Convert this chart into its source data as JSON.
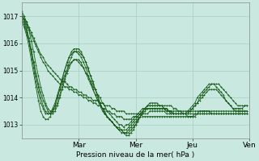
{
  "bg_color": "#c8e8e0",
  "grid_color": "#a0c8b8",
  "line_color": "#1a5c1a",
  "marker_color": "#1a5c1a",
  "title": "Pression niveau de la mer( hPa )",
  "ylabel_ticks": [
    1013,
    1014,
    1015,
    1016,
    1017
  ],
  "ylim": [
    1012.5,
    1017.5
  ],
  "day_labels": [
    "Mar",
    "Mer",
    "Jeu",
    "Ven"
  ],
  "day_positions": [
    24,
    48,
    72,
    96
  ],
  "xlim": [
    0,
    96
  ],
  "series": [
    [
      1017.0,
      1016.9,
      1016.8,
      1016.6,
      1016.4,
      1016.2,
      1016.0,
      1015.8,
      1015.6,
      1015.5,
      1015.3,
      1015.2,
      1015.1,
      1015.0,
      1014.9,
      1014.8,
      1014.7,
      1014.6,
      1014.6,
      1014.5,
      1014.4,
      1014.4,
      1014.3,
      1014.3,
      1014.2,
      1014.2,
      1014.1,
      1014.1,
      1014.0,
      1014.0,
      1013.9,
      1013.9,
      1013.9,
      1013.8,
      1013.8,
      1013.7,
      1013.7,
      1013.7,
      1013.6,
      1013.6,
      1013.5,
      1013.5,
      1013.5,
      1013.5,
      1013.4,
      1013.4,
      1013.4,
      1013.4,
      1013.4,
      1013.4,
      1013.4,
      1013.3,
      1013.3,
      1013.3,
      1013.3,
      1013.3,
      1013.3,
      1013.3,
      1013.3,
      1013.3,
      1013.3,
      1013.3,
      1013.3,
      1013.3,
      1013.3,
      1013.3,
      1013.3,
      1013.3,
      1013.3,
      1013.3,
      1013.3,
      1013.3,
      1013.3,
      1013.3,
      1013.4,
      1013.4,
      1013.4,
      1013.4,
      1013.4,
      1013.4,
      1013.4,
      1013.4,
      1013.4,
      1013.4,
      1013.4,
      1013.4,
      1013.4,
      1013.4,
      1013.4,
      1013.4,
      1013.4,
      1013.4,
      1013.4,
      1013.4,
      1013.4,
      1013.4
    ],
    [
      1017.0,
      1016.9,
      1016.7,
      1016.5,
      1016.3,
      1016.1,
      1015.9,
      1015.7,
      1015.5,
      1015.3,
      1015.2,
      1015.0,
      1014.9,
      1014.8,
      1014.7,
      1014.6,
      1014.5,
      1014.5,
      1014.4,
      1014.4,
      1014.3,
      1014.3,
      1014.2,
      1014.2,
      1014.1,
      1014.1,
      1014.0,
      1014.0,
      1013.9,
      1013.9,
      1013.8,
      1013.8,
      1013.7,
      1013.7,
      1013.6,
      1013.6,
      1013.5,
      1013.5,
      1013.4,
      1013.4,
      1013.3,
      1013.3,
      1013.3,
      1013.2,
      1013.2,
      1013.2,
      1013.2,
      1013.3,
      1013.3,
      1013.3,
      1013.4,
      1013.4,
      1013.4,
      1013.4,
      1013.5,
      1013.5,
      1013.5,
      1013.5,
      1013.5,
      1013.5,
      1013.5,
      1013.4,
      1013.4,
      1013.4,
      1013.4,
      1013.4,
      1013.4,
      1013.4,
      1013.4,
      1013.4,
      1013.4,
      1013.4,
      1013.4,
      1013.4,
      1013.4,
      1013.4,
      1013.4,
      1013.4,
      1013.4,
      1013.4,
      1013.4,
      1013.4,
      1013.4,
      1013.4,
      1013.4,
      1013.4,
      1013.4,
      1013.4,
      1013.4,
      1013.4,
      1013.4,
      1013.4,
      1013.4,
      1013.4,
      1013.4,
      1013.4
    ],
    [
      1016.8,
      1016.6,
      1016.3,
      1015.9,
      1015.4,
      1014.9,
      1014.4,
      1013.9,
      1013.5,
      1013.3,
      1013.2,
      1013.2,
      1013.3,
      1013.5,
      1013.7,
      1014.0,
      1014.3,
      1014.6,
      1014.8,
      1015.0,
      1015.2,
      1015.3,
      1015.4,
      1015.4,
      1015.3,
      1015.2,
      1015.1,
      1014.9,
      1014.8,
      1014.6,
      1014.4,
      1014.3,
      1014.1,
      1014.0,
      1013.8,
      1013.7,
      1013.5,
      1013.4,
      1013.3,
      1013.2,
      1013.1,
      1013.0,
      1013.0,
      1012.9,
      1013.0,
      1013.0,
      1013.1,
      1013.2,
      1013.3,
      1013.4,
      1013.5,
      1013.6,
      1013.6,
      1013.7,
      1013.7,
      1013.7,
      1013.7,
      1013.7,
      1013.7,
      1013.7,
      1013.7,
      1013.7,
      1013.7,
      1013.7,
      1013.6,
      1013.6,
      1013.5,
      1013.5,
      1013.4,
      1013.4,
      1013.3,
      1013.3,
      1013.3,
      1013.4,
      1013.4,
      1013.5,
      1013.5,
      1013.5,
      1013.5,
      1013.5,
      1013.5,
      1013.5,
      1013.5,
      1013.5,
      1013.5,
      1013.5,
      1013.5,
      1013.5,
      1013.5,
      1013.5,
      1013.5,
      1013.5,
      1013.5,
      1013.5,
      1013.5,
      1013.5
    ],
    [
      1016.9,
      1016.7,
      1016.4,
      1016.1,
      1015.7,
      1015.3,
      1014.9,
      1014.5,
      1014.2,
      1013.9,
      1013.7,
      1013.5,
      1013.4,
      1013.4,
      1013.5,
      1013.7,
      1014.0,
      1014.3,
      1014.6,
      1014.9,
      1015.1,
      1015.3,
      1015.4,
      1015.4,
      1015.4,
      1015.3,
      1015.1,
      1014.9,
      1014.7,
      1014.5,
      1014.3,
      1014.1,
      1013.9,
      1013.7,
      1013.6,
      1013.4,
      1013.3,
      1013.2,
      1013.1,
      1013.0,
      1012.9,
      1012.9,
      1012.8,
      1012.8,
      1012.8,
      1012.9,
      1013.0,
      1013.1,
      1013.2,
      1013.3,
      1013.4,
      1013.5,
      1013.6,
      1013.6,
      1013.6,
      1013.6,
      1013.6,
      1013.6,
      1013.6,
      1013.6,
      1013.6,
      1013.5,
      1013.5,
      1013.5,
      1013.5,
      1013.5,
      1013.5,
      1013.5,
      1013.5,
      1013.5,
      1013.5,
      1013.5,
      1013.5,
      1013.5,
      1013.5,
      1013.5,
      1013.5,
      1013.5,
      1013.5,
      1013.5,
      1013.4,
      1013.4,
      1013.4,
      1013.4,
      1013.4,
      1013.4,
      1013.4,
      1013.4,
      1013.4,
      1013.4,
      1013.4,
      1013.4,
      1013.4,
      1013.4,
      1013.4,
      1013.4
    ],
    [
      1017.0,
      1016.8,
      1016.5,
      1016.1,
      1015.6,
      1015.1,
      1014.6,
      1014.2,
      1013.8,
      1013.6,
      1013.4,
      1013.4,
      1013.4,
      1013.6,
      1013.8,
      1014.1,
      1014.4,
      1014.7,
      1015.0,
      1015.3,
      1015.5,
      1015.6,
      1015.7,
      1015.7,
      1015.6,
      1015.5,
      1015.3,
      1015.1,
      1014.8,
      1014.6,
      1014.3,
      1014.1,
      1013.9,
      1013.7,
      1013.5,
      1013.4,
      1013.3,
      1013.2,
      1013.1,
      1013.0,
      1012.9,
      1012.8,
      1012.8,
      1012.7,
      1012.7,
      1012.8,
      1012.9,
      1013.0,
      1013.1,
      1013.2,
      1013.3,
      1013.4,
      1013.5,
      1013.6,
      1013.6,
      1013.6,
      1013.6,
      1013.6,
      1013.6,
      1013.6,
      1013.6,
      1013.5,
      1013.5,
      1013.4,
      1013.4,
      1013.4,
      1013.4,
      1013.4,
      1013.4,
      1013.4,
      1013.5,
      1013.5,
      1013.6,
      1013.7,
      1013.8,
      1013.9,
      1014.0,
      1014.1,
      1014.2,
      1014.3,
      1014.3,
      1014.3,
      1014.3,
      1014.2,
      1014.1,
      1014.0,
      1013.9,
      1013.8,
      1013.7,
      1013.6,
      1013.6,
      1013.6,
      1013.6,
      1013.6,
      1013.7,
      1013.7
    ],
    [
      1017.1,
      1016.9,
      1016.6,
      1016.2,
      1015.8,
      1015.3,
      1014.8,
      1014.4,
      1014.0,
      1013.7,
      1013.5,
      1013.4,
      1013.4,
      1013.5,
      1013.7,
      1014.0,
      1014.3,
      1014.6,
      1015.0,
      1015.2,
      1015.5,
      1015.7,
      1015.8,
      1015.8,
      1015.8,
      1015.7,
      1015.5,
      1015.3,
      1015.1,
      1014.8,
      1014.6,
      1014.3,
      1014.1,
      1013.8,
      1013.6,
      1013.5,
      1013.3,
      1013.2,
      1013.1,
      1013.0,
      1012.9,
      1012.8,
      1012.8,
      1012.7,
      1012.7,
      1012.7,
      1012.8,
      1012.9,
      1013.0,
      1013.2,
      1013.3,
      1013.5,
      1013.6,
      1013.7,
      1013.7,
      1013.7,
      1013.7,
      1013.7,
      1013.7,
      1013.7,
      1013.6,
      1013.6,
      1013.5,
      1013.5,
      1013.4,
      1013.4,
      1013.4,
      1013.4,
      1013.4,
      1013.4,
      1013.5,
      1013.6,
      1013.7,
      1013.8,
      1014.0,
      1014.1,
      1014.2,
      1014.3,
      1014.4,
      1014.5,
      1014.5,
      1014.5,
      1014.4,
      1014.3,
      1014.2,
      1014.1,
      1013.9,
      1013.8,
      1013.7,
      1013.6,
      1013.5,
      1013.5,
      1013.5,
      1013.5,
      1013.5,
      1013.5
    ],
    [
      1017.2,
      1017.0,
      1016.8,
      1016.5,
      1016.1,
      1015.7,
      1015.2,
      1014.8,
      1014.4,
      1014.1,
      1013.8,
      1013.6,
      1013.5,
      1013.5,
      1013.6,
      1013.8,
      1014.1,
      1014.4,
      1014.7,
      1015.0,
      1015.3,
      1015.5,
      1015.7,
      1015.7,
      1015.7,
      1015.6,
      1015.5,
      1015.3,
      1015.0,
      1014.8,
      1014.5,
      1014.3,
      1014.0,
      1013.8,
      1013.6,
      1013.4,
      1013.3,
      1013.2,
      1013.1,
      1013.0,
      1012.9,
      1012.8,
      1012.7,
      1012.7,
      1012.6,
      1012.6,
      1012.7,
      1012.8,
      1013.0,
      1013.1,
      1013.3,
      1013.5,
      1013.6,
      1013.7,
      1013.8,
      1013.8,
      1013.8,
      1013.8,
      1013.7,
      1013.7,
      1013.6,
      1013.6,
      1013.5,
      1013.5,
      1013.4,
      1013.4,
      1013.4,
      1013.4,
      1013.4,
      1013.4,
      1013.4,
      1013.5,
      1013.6,
      1013.7,
      1013.8,
      1014.0,
      1014.1,
      1014.2,
      1014.3,
      1014.4,
      1014.5,
      1014.5,
      1014.5,
      1014.5,
      1014.4,
      1014.3,
      1014.2,
      1014.1,
      1014.0,
      1013.9,
      1013.8,
      1013.7,
      1013.7,
      1013.7,
      1013.7,
      1013.7
    ]
  ]
}
